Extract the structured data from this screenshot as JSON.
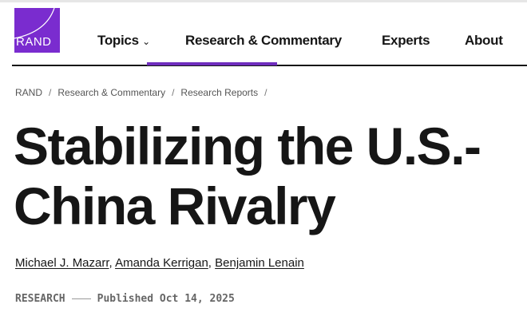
{
  "brand": {
    "logo_text": "RAND",
    "color": "#7a2ccf"
  },
  "nav": {
    "items": [
      {
        "label": "Topics"
      },
      {
        "label": "Research & Commentary",
        "active": true
      },
      {
        "label": "Experts"
      },
      {
        "label": "About"
      }
    ],
    "accent": "#6f2dbd"
  },
  "breadcrumb": [
    "RAND",
    "Research & Commentary",
    "Research Reports"
  ],
  "title": "Stabilizing the U.S.-China Rivalry",
  "authors": [
    "Michael J. Mazarr",
    "Amanda Kerrigan",
    "Benjamin Lenain"
  ],
  "meta": {
    "type": "RESEARCH",
    "published": "Published Oct 14, 2025"
  }
}
